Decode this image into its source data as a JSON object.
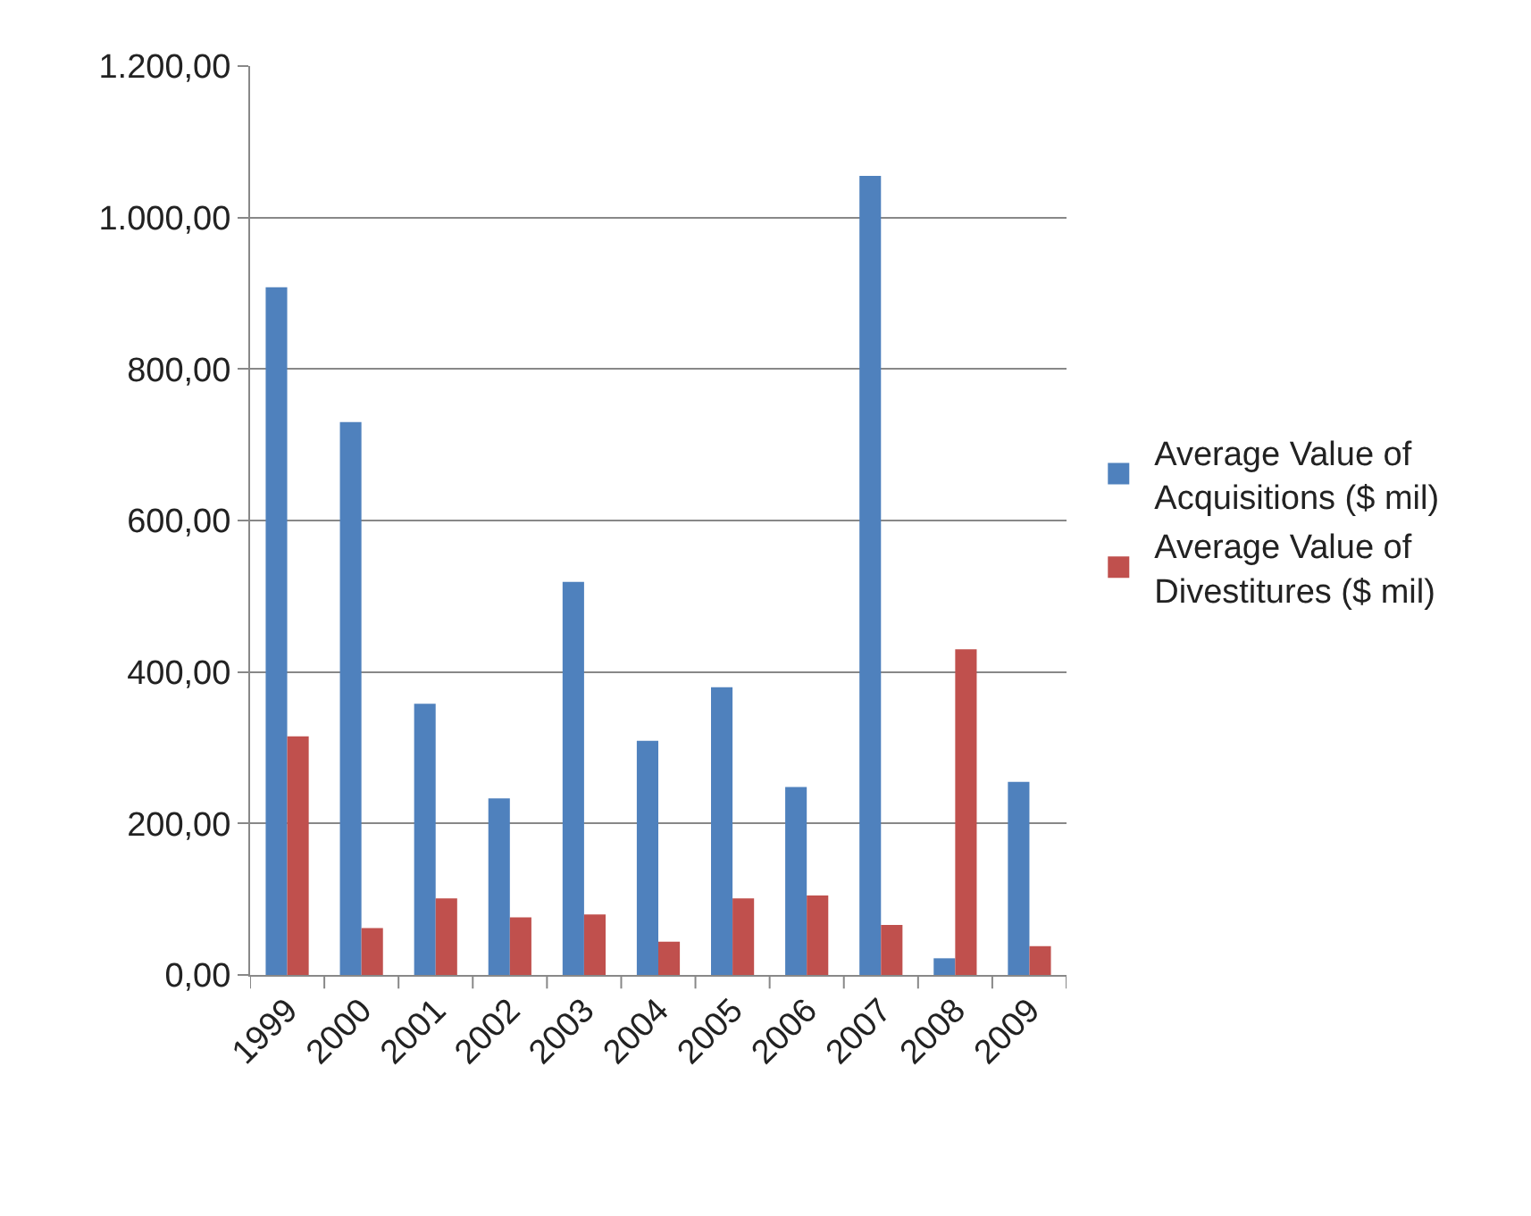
{
  "chart_data": {
    "type": "bar",
    "categories": [
      "1999",
      "2000",
      "2001",
      "2002",
      "2003",
      "2004",
      "2005",
      "2006",
      "2007",
      "2008",
      "2009"
    ],
    "series": [
      {
        "name": "Average Value of Acquisitions ($ mil)",
        "color": "#4f81bd",
        "values": [
          908,
          730,
          358,
          233,
          519,
          309,
          380,
          248,
          1055,
          22,
          255
        ]
      },
      {
        "name": "Average Value of Divestitures ($ mil)",
        "color": "#c0504d",
        "values": [
          315,
          62,
          101,
          76,
          80,
          44,
          101,
          105,
          66,
          430,
          38
        ]
      }
    ],
    "ylim": [
      0,
      1200
    ],
    "yticks": [
      {
        "value": 0,
        "label": "0,00"
      },
      {
        "value": 200,
        "label": "200,00"
      },
      {
        "value": 400,
        "label": "400,00"
      },
      {
        "value": 600,
        "label": "600,00"
      },
      {
        "value": 800,
        "label": "800,00"
      },
      {
        "value": 1000,
        "label": "1.000,00"
      },
      {
        "value": 1200,
        "label": "1.200,00"
      }
    ],
    "grid": "y",
    "legend": "right"
  }
}
